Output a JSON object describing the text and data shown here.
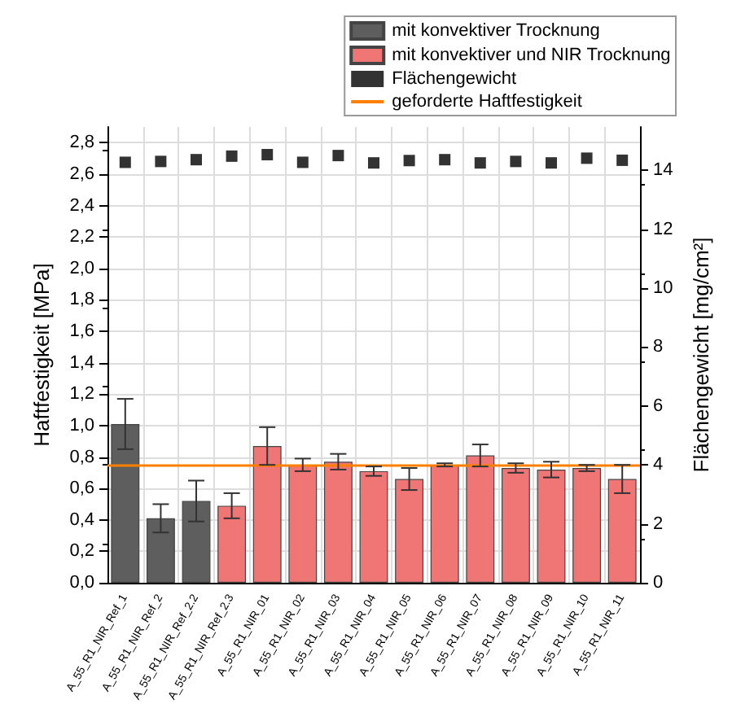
{
  "chart_data": {
    "type": "bar",
    "ylabel": "Haftfestigkeit [MPa]",
    "y2label": "Flächengewicht [mg/cm²]",
    "categories": [
      "A_55_R1_NIR_Ref_1",
      "A_55_R1_NIR_Ref_2",
      "A_55_R1_NIR_Ref_2.2",
      "A_55_R1_NIR_Ref_2.3",
      "A_55_R1_NIR_01",
      "A_55_R1_NIR_02",
      "A_55_R1_NIR_03",
      "A_55_R1_NIR_04",
      "A_55_R1_NIR_05",
      "A_55_R1_NIR_06",
      "A_55_R1_NIR_07",
      "A_55_R1_NIR_08",
      "A_55_R1_NIR_09",
      "A_55_R1_NIR_10",
      "A_55_R1_NIR_11"
    ],
    "series": [
      {
        "name": "mit konvektiver Trocknung",
        "color": "#5e5e5e",
        "values": [
          1.01,
          0.41,
          0.52,
          null,
          null,
          null,
          null,
          null,
          null,
          null,
          null,
          null,
          null,
          null,
          null
        ],
        "errors": [
          0.16,
          0.09,
          0.13,
          null,
          null,
          null,
          null,
          null,
          null,
          null,
          null,
          null,
          null,
          null,
          null
        ]
      },
      {
        "name": "mit konvektiver und NIR Trocknung",
        "color": "#f07575",
        "values": [
          null,
          null,
          null,
          0.49,
          0.87,
          0.75,
          0.77,
          0.71,
          0.66,
          0.75,
          0.81,
          0.73,
          0.72,
          0.73,
          0.66
        ],
        "errors": [
          null,
          null,
          null,
          0.08,
          0.12,
          0.04,
          0.05,
          0.03,
          0.07,
          0.01,
          0.07,
          0.03,
          0.05,
          0.02,
          0.09
        ]
      },
      {
        "name": "Flächengewicht",
        "type": "scatter",
        "axis": "y2",
        "color": "#000000",
        "marker": "square",
        "values": [
          14.27,
          14.3,
          14.36,
          14.48,
          14.53,
          14.27,
          14.5,
          14.25,
          14.33,
          14.36,
          14.25,
          14.3,
          14.25,
          14.41,
          14.34
        ]
      }
    ],
    "ref_lines": [
      {
        "axis": "y",
        "value": 0.75,
        "label": "geforderte Haftfestigkeit",
        "color": "#ff8000",
        "line_style": "solid"
      }
    ],
    "ylim": [
      0,
      2.9
    ],
    "yticks": [
      {
        "value": 0,
        "label": "0,0"
      },
      {
        "value": 0.2,
        "label": "0,2"
      },
      {
        "value": 0.4,
        "label": "0,4"
      },
      {
        "value": 0.6,
        "label": "0,6"
      },
      {
        "value": 0.8,
        "label": "0,8"
      },
      {
        "value": 1.0,
        "label": "1,0"
      },
      {
        "value": 1.2,
        "label": "1,2"
      },
      {
        "value": 1.4,
        "label": "1,4"
      },
      {
        "value": 1.6,
        "label": "1,6"
      },
      {
        "value": 1.8,
        "label": "1,8"
      },
      {
        "value": 2.0,
        "label": "2,0"
      },
      {
        "value": 2.2,
        "label": "2,2"
      },
      {
        "value": 2.4,
        "label": "2,4"
      },
      {
        "value": 2.6,
        "label": "2,6"
      },
      {
        "value": 2.8,
        "label": "2,8"
      }
    ],
    "y2lim": [
      0,
      15.47
    ],
    "y2ticks": [
      0,
      2,
      4,
      6,
      8,
      10,
      12,
      14
    ],
    "grid": true,
    "legend": "top right"
  }
}
